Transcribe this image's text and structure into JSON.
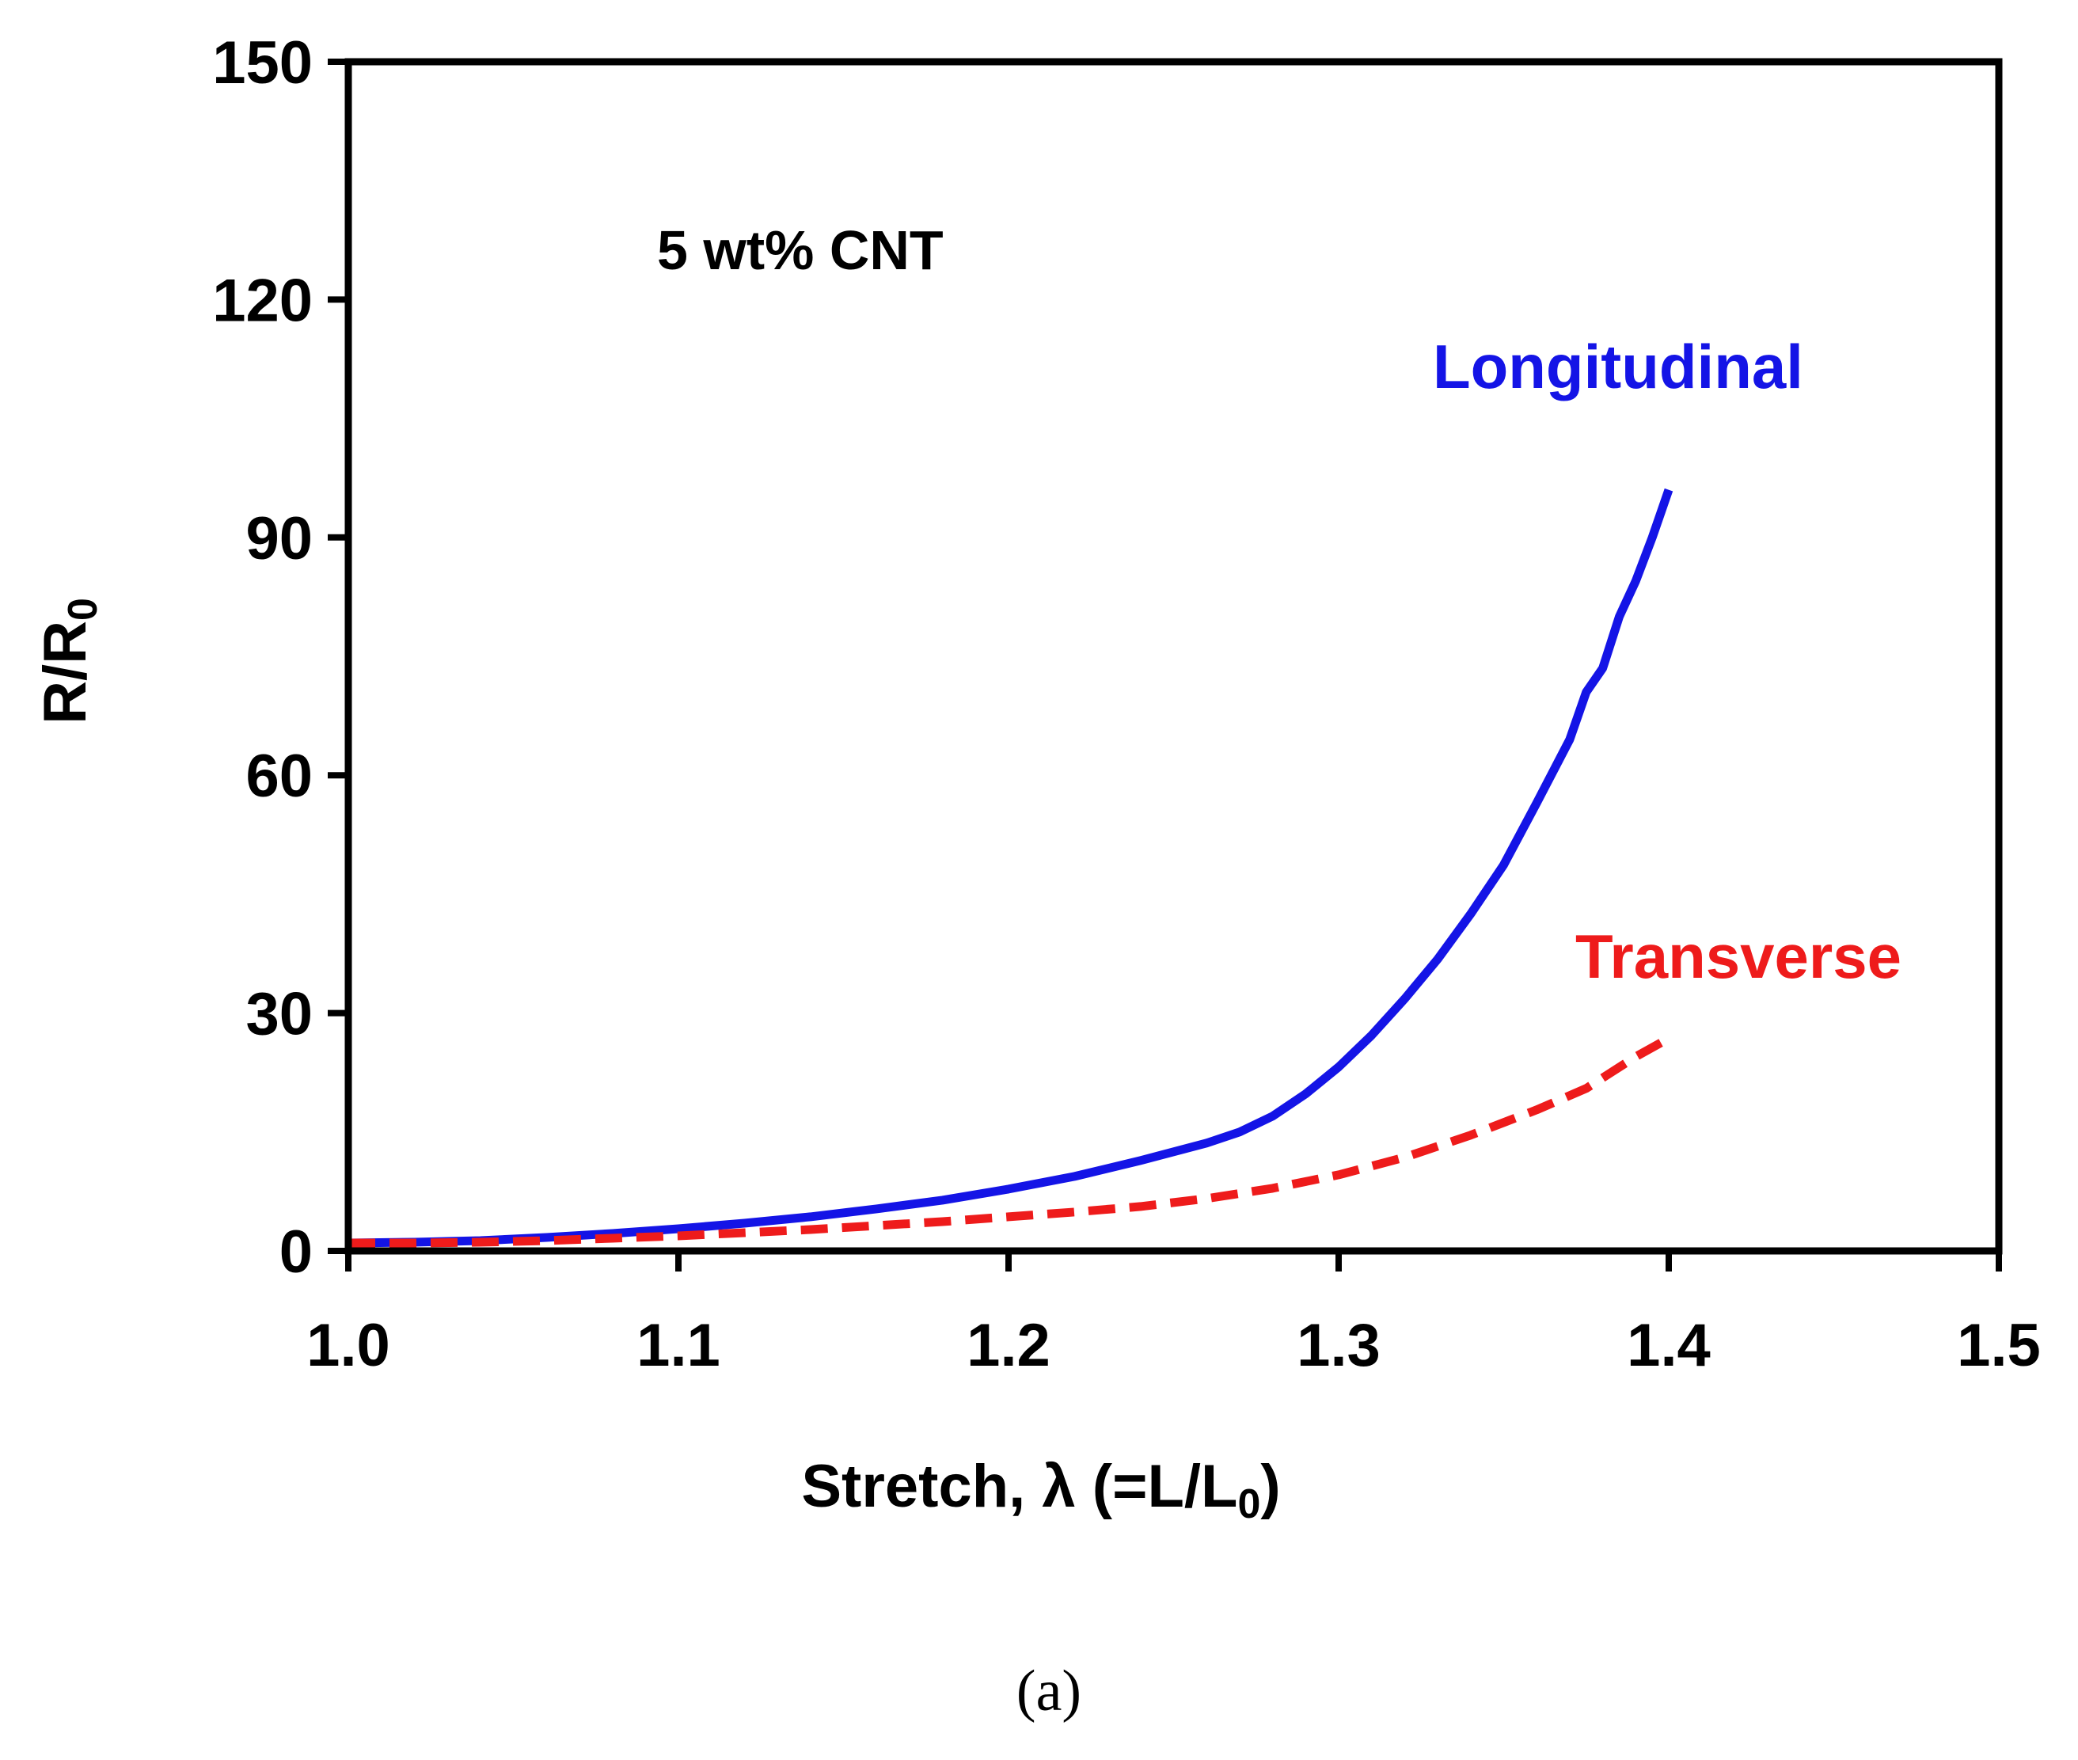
{
  "chart_data": {
    "type": "line",
    "title": "",
    "annotation": "5 wt% CNT",
    "xlabel": {
      "main": "Stretch, λ (=L/L",
      "sub": "0",
      "tail": ")"
    },
    "ylabel": {
      "main": "R/R",
      "sub": "0"
    },
    "xlim": [
      1.0,
      1.5
    ],
    "ylim": [
      0,
      150
    ],
    "xticks": [
      1.0,
      1.1,
      1.2,
      1.3,
      1.4,
      1.5
    ],
    "xtick_labels": [
      "1.0",
      "1.1",
      "1.2",
      "1.3",
      "1.4",
      "1.5"
    ],
    "yticks": [
      0,
      30,
      60,
      90,
      120,
      150
    ],
    "ytick_labels": [
      "0",
      "30",
      "60",
      "90",
      "120",
      "150"
    ],
    "grid": false,
    "series": [
      {
        "name": "Longitudinal",
        "color": "#1414e6",
        "dash": "solid",
        "x": [
          1.0,
          1.02,
          1.04,
          1.06,
          1.08,
          1.1,
          1.12,
          1.14,
          1.16,
          1.18,
          1.2,
          1.22,
          1.24,
          1.26,
          1.27,
          1.28,
          1.29,
          1.3,
          1.31,
          1.32,
          1.33,
          1.34,
          1.35,
          1.36,
          1.37,
          1.375,
          1.38,
          1.385,
          1.39,
          1.395,
          1.4
        ],
        "values": [
          1.0,
          1.1,
          1.3,
          1.7,
          2.2,
          2.8,
          3.5,
          4.3,
          5.3,
          6.4,
          7.8,
          9.4,
          11.4,
          13.6,
          15.0,
          17.0,
          19.8,
          23.2,
          27.2,
          31.8,
          36.8,
          42.5,
          48.7,
          56.5,
          64.5,
          70.5,
          73.5,
          80.0,
          84.5,
          90.0,
          96.0
        ]
      },
      {
        "name": "Transverse",
        "color": "#ee1b1b",
        "dash": "dashed",
        "x": [
          1.0,
          1.02,
          1.04,
          1.06,
          1.08,
          1.1,
          1.12,
          1.14,
          1.16,
          1.18,
          1.2,
          1.22,
          1.24,
          1.26,
          1.28,
          1.3,
          1.32,
          1.34,
          1.36,
          1.375,
          1.39,
          1.4
        ],
        "values": [
          1.0,
          1.0,
          1.1,
          1.3,
          1.6,
          1.9,
          2.3,
          2.7,
          3.2,
          3.7,
          4.3,
          4.9,
          5.6,
          6.6,
          7.9,
          9.6,
          11.8,
          14.6,
          17.8,
          20.5,
          24.5,
          26.8
        ]
      }
    ]
  },
  "caption": "(a)"
}
